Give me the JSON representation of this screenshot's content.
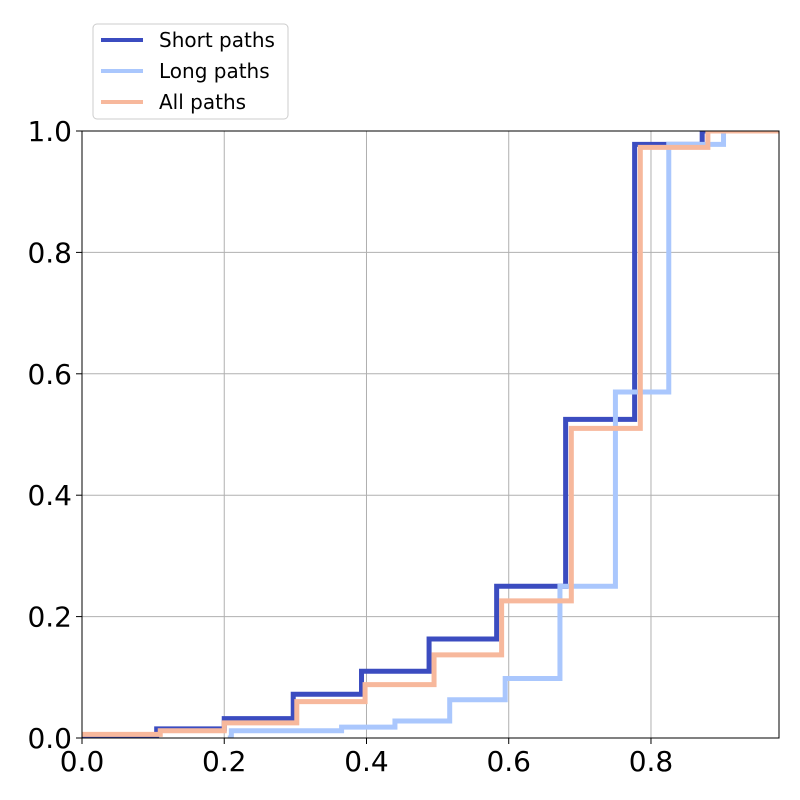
{
  "chart_data": {
    "type": "line",
    "subtype": "step-ecdf",
    "title": "",
    "xlabel": "",
    "ylabel": "",
    "xlim": [
      0.0,
      0.98
    ],
    "ylim": [
      0.0,
      1.0
    ],
    "x_ticks": [
      "0.0",
      "0.2",
      "0.4",
      "0.6",
      "0.8"
    ],
    "y_ticks": [
      "0.0",
      "0.2",
      "0.4",
      "0.6",
      "0.8",
      "1.0"
    ],
    "grid": true,
    "legend_position": "top-left, above plot",
    "series": [
      {
        "name": "Short paths",
        "color": "#3b4cc0",
        "points": [
          [
            0.0,
            0.005
          ],
          [
            0.105,
            0.015
          ],
          [
            0.2,
            0.032
          ],
          [
            0.297,
            0.072
          ],
          [
            0.393,
            0.11
          ],
          [
            0.488,
            0.163
          ],
          [
            0.583,
            0.25
          ],
          [
            0.68,
            0.525
          ],
          [
            0.777,
            0.978
          ],
          [
            0.872,
            1.0
          ],
          [
            0.98,
            1.0
          ]
        ]
      },
      {
        "name": "Long paths",
        "color": "#aac7fd",
        "points": [
          [
            0.205,
            0.0
          ],
          [
            0.21,
            0.012
          ],
          [
            0.365,
            0.018
          ],
          [
            0.44,
            0.028
          ],
          [
            0.517,
            0.063
          ],
          [
            0.595,
            0.098
          ],
          [
            0.672,
            0.25
          ],
          [
            0.75,
            0.57
          ],
          [
            0.825,
            0.978
          ],
          [
            0.902,
            1.0
          ],
          [
            0.98,
            1.0
          ]
        ]
      },
      {
        "name": "All paths",
        "color": "#f7b89c",
        "points": [
          [
            0.0,
            0.006
          ],
          [
            0.11,
            0.012
          ],
          [
            0.2,
            0.025
          ],
          [
            0.302,
            0.06
          ],
          [
            0.398,
            0.088
          ],
          [
            0.495,
            0.137
          ],
          [
            0.59,
            0.226
          ],
          [
            0.688,
            0.51
          ],
          [
            0.785,
            0.973
          ],
          [
            0.88,
            1.0
          ],
          [
            0.98,
            1.0
          ]
        ]
      }
    ]
  }
}
